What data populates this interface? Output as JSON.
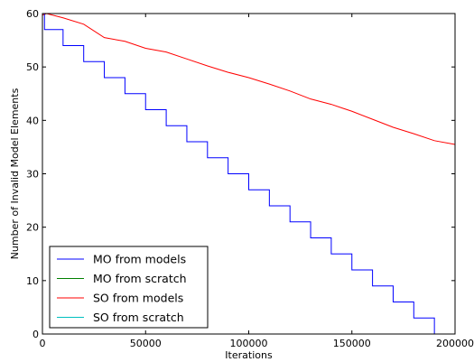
{
  "chart_data": {
    "type": "line",
    "title": "",
    "xlabel": "Iterations",
    "ylabel": "Number of Invalid Model Elements",
    "xlim": [
      0,
      200000
    ],
    "ylim": [
      0,
      60
    ],
    "grid": false,
    "legend_position": "bottom-left",
    "x_ticks": [
      0,
      50000,
      100000,
      150000,
      200000
    ],
    "x_tick_labels": [
      "0",
      "50000",
      "100000",
      "150000",
      "200000"
    ],
    "y_ticks": [
      0,
      10,
      20,
      30,
      40,
      50,
      60
    ],
    "y_tick_labels": [
      "0",
      "10",
      "20",
      "30",
      "40",
      "50",
      "60"
    ],
    "series": [
      {
        "name": "MO from models",
        "color": "#0000ff",
        "shape": "step",
        "x": [
          0,
          1000,
          10000,
          20000,
          30000,
          40000,
          50000,
          60000,
          70000,
          80000,
          90000,
          100000,
          110000,
          120000,
          130000,
          140000,
          150000,
          160000,
          170000,
          180000,
          190000
        ],
        "y": [
          60,
          57,
          54,
          51,
          48,
          45,
          42,
          39,
          36,
          33,
          30,
          27,
          24,
          21,
          18,
          15,
          12,
          9,
          6,
          3,
          0
        ]
      },
      {
        "name": "MO from scratch",
        "color": "#008000",
        "shape": "line",
        "x": [
          0,
          200000
        ],
        "y": [
          0,
          0
        ]
      },
      {
        "name": "SO from models",
        "color": "#ff0000",
        "shape": "line",
        "x": [
          0,
          2000,
          10000,
          20000,
          30000,
          40000,
          50000,
          60000,
          70000,
          80000,
          90000,
          100000,
          110000,
          120000,
          130000,
          140000,
          150000,
          160000,
          170000,
          180000,
          190000,
          200000
        ],
        "y": [
          59.7,
          60,
          59.2,
          58,
          55.5,
          54.8,
          53.5,
          52.8,
          51.5,
          50.2,
          49,
          48,
          46.8,
          45.5,
          44,
          43,
          41.7,
          40.2,
          38.7,
          37.5,
          36.2,
          35.5
        ]
      },
      {
        "name": "SO from scratch",
        "color": "#00bfbf",
        "shape": "line",
        "x": [
          0,
          200000
        ],
        "y": [
          0,
          0
        ]
      }
    ]
  }
}
